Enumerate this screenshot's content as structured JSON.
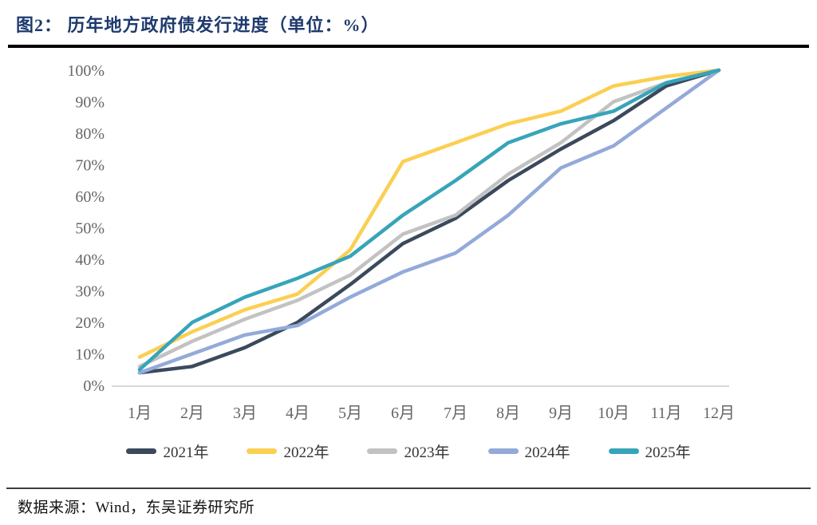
{
  "figure": {
    "title": "图2：  历年地方政府债发行进度（单位：%）",
    "source": "数据来源：Wind，东吴证券研究所"
  },
  "colors": {
    "title_navy": "#1e3a6d",
    "axis_line": "#d9d9d9",
    "tick_label": "#666666",
    "divider_black": "#000000",
    "divider_bottom": "#3c3c3c"
  },
  "chart_data": {
    "type": "line",
    "title": "历年地方政府债发行进度",
    "unit": "%",
    "x_tick_labels": [
      "1月",
      "2月",
      "3月",
      "4月",
      "5月",
      "6月",
      "7月",
      "8月",
      "9月",
      "10月",
      "11月",
      "12月"
    ],
    "y_tick_labels": [
      "0%",
      "10%",
      "20%",
      "30%",
      "40%",
      "50%",
      "60%",
      "70%",
      "80%",
      "90%",
      "100%"
    ],
    "ylim": [
      0,
      100
    ],
    "grid": false,
    "legend_position": "bottom",
    "series": [
      {
        "name": "2021年",
        "color": "#3b495c",
        "values": [
          4,
          6,
          12,
          20,
          32,
          45,
          53,
          65,
          75,
          84,
          95,
          100
        ]
      },
      {
        "name": "2022年",
        "color": "#fbcf51",
        "values": [
          9,
          17,
          24,
          29,
          43,
          71,
          77,
          83,
          87,
          95,
          98,
          100
        ]
      },
      {
        "name": "2023年",
        "color": "#c2c2c2",
        "values": [
          6,
          14,
          21,
          27,
          35,
          48,
          54,
          67,
          77,
          90,
          96,
          100
        ]
      },
      {
        "name": "2024年",
        "color": "#93aad9",
        "values": [
          4,
          10,
          16,
          19,
          28,
          36,
          42,
          54,
          69,
          76,
          88,
          100
        ]
      },
      {
        "name": "2025年",
        "color": "#37a4ba",
        "values": [
          5,
          20,
          28,
          34,
          41,
          54,
          65,
          77,
          83,
          87,
          96,
          100
        ]
      }
    ]
  }
}
